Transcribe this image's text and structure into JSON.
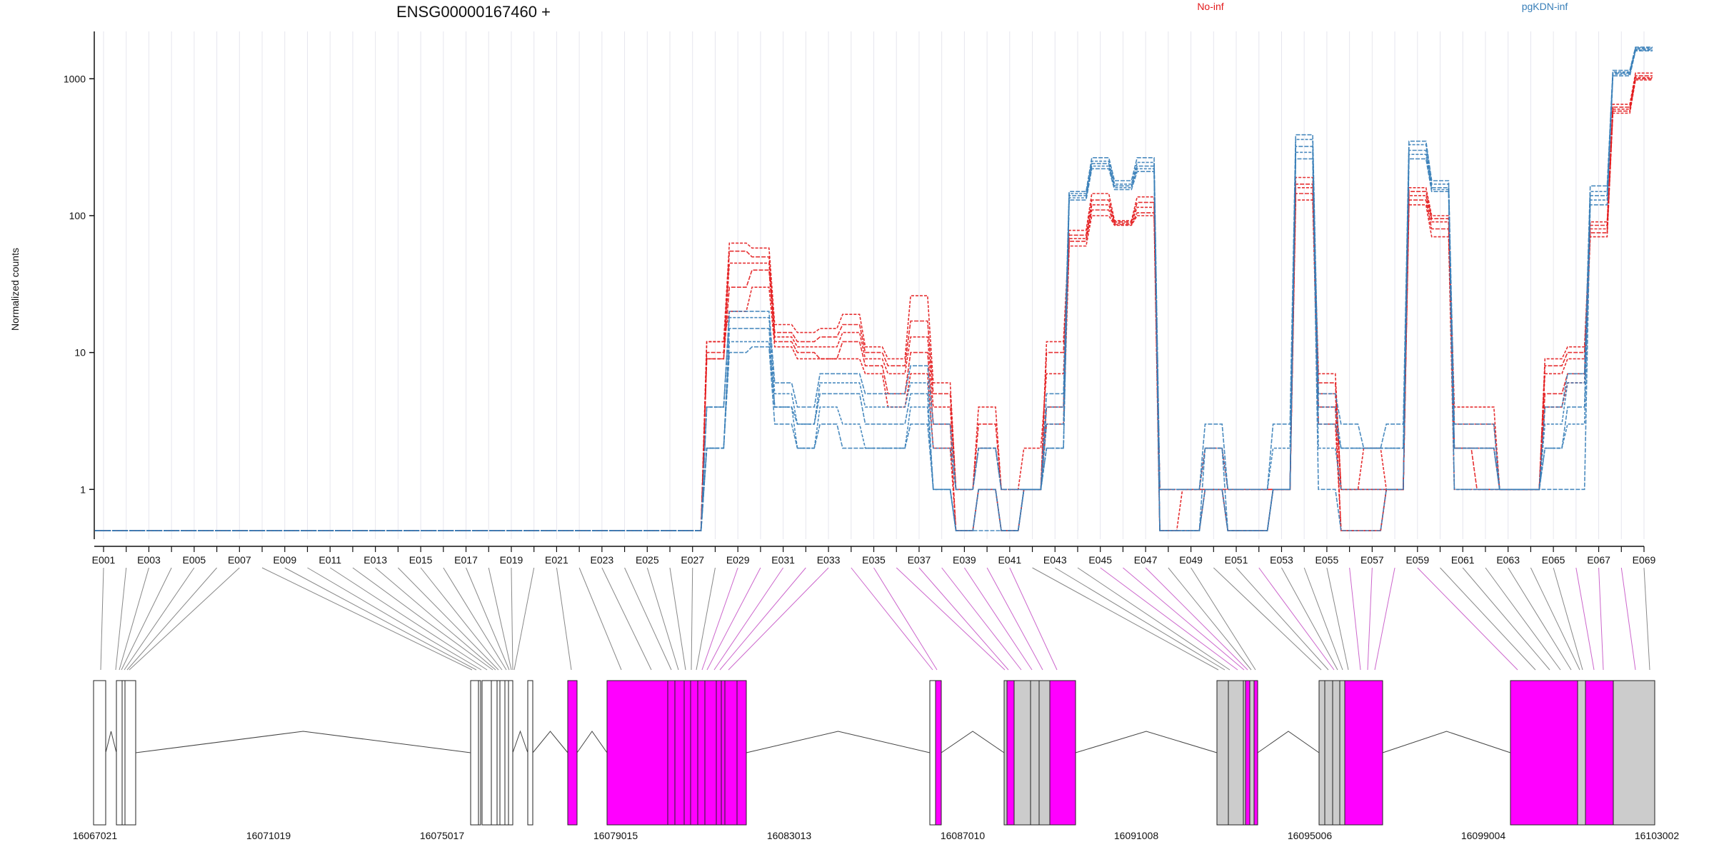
{
  "chart_data": {
    "type": "line",
    "title": "ENSG00000167460 +",
    "ylabel": "Normalized counts",
    "y_scale": "log",
    "ylim": [
      0.5,
      2500
    ],
    "y_ticks": [
      1,
      10,
      100,
      1000
    ],
    "y_tick_labels": [
      "1",
      "10",
      "100",
      "1000"
    ],
    "grid": "vertical",
    "legend_placement": "top",
    "colors": {
      "No-inf": "#e31a1c",
      "pgKDN-inf": "#377eb8",
      "exon_gray": "#cccccc",
      "exon_magenta": "#ff00ff",
      "intron_line": "#555555"
    },
    "x_categories": [
      "E001",
      "E002",
      "E003",
      "E004",
      "E005",
      "E006",
      "E007",
      "E008",
      "E009",
      "E010",
      "E011",
      "E012",
      "E013",
      "E014",
      "E015",
      "E016",
      "E017",
      "E018",
      "E019",
      "E020",
      "E021",
      "E022",
      "E023",
      "E024",
      "E025",
      "E026",
      "E027",
      "E028",
      "E029",
      "E030",
      "E031",
      "E032",
      "E033",
      "E034",
      "E035",
      "E036",
      "E037",
      "E038",
      "E039",
      "E040",
      "E041",
      "E042",
      "E043",
      "E044",
      "E045",
      "E046",
      "E047",
      "E048",
      "E049",
      "E050",
      "E051",
      "E052",
      "E053",
      "E054",
      "E055",
      "E056",
      "E057",
      "E058",
      "E059",
      "E060",
      "E061",
      "E062",
      "E063",
      "E064",
      "E065",
      "E066",
      "E067",
      "E068",
      "E069"
    ],
    "x_tick_labels": [
      "E001",
      "E003",
      "E005",
      "E007",
      "E009",
      "E011",
      "E013",
      "E015",
      "E017",
      "E019",
      "E021",
      "E023",
      "E025",
      "E027",
      "E029",
      "E031",
      "E033",
      "E035",
      "E037",
      "E039",
      "E041",
      "E043",
      "E045",
      "E047",
      "E049",
      "E051",
      "E053",
      "E055",
      "E057",
      "E059",
      "E061",
      "E063",
      "E065",
      "E067",
      "E069"
    ],
    "legend": [
      {
        "name": "No-inf",
        "color": "#e31a1c"
      },
      {
        "name": "pgKDN-inf",
        "color": "#377eb8"
      }
    ],
    "series": [
      {
        "group": "No-inf",
        "values": [
          0.5,
          0.5,
          0.5,
          0.5,
          0.5,
          0.5,
          0.5,
          0.5,
          0.5,
          0.5,
          0.5,
          0.5,
          0.5,
          0.5,
          0.5,
          0.5,
          0.5,
          0.5,
          0.5,
          0.5,
          0.5,
          0.5,
          0.5,
          0.5,
          0.5,
          0.5,
          0.5,
          12,
          63,
          58,
          16,
          14,
          15,
          19,
          11,
          9,
          26,
          6,
          1,
          4,
          1,
          1,
          12,
          78,
          145,
          92,
          137,
          1,
          1,
          1,
          1,
          1,
          1,
          190,
          7,
          1,
          1,
          1,
          160,
          100,
          4,
          4,
          1,
          1,
          9,
          11,
          90,
          650,
          1100
        ]
      },
      {
        "group": "No-inf",
        "values": [
          0.5,
          0.5,
          0.5,
          0.5,
          0.5,
          0.5,
          0.5,
          0.5,
          0.5,
          0.5,
          0.5,
          0.5,
          0.5,
          0.5,
          0.5,
          0.5,
          0.5,
          0.5,
          0.5,
          0.5,
          0.5,
          0.5,
          0.5,
          0.5,
          0.5,
          0.5,
          0.5,
          10,
          55,
          50,
          14,
          12,
          13,
          16,
          10,
          8,
          17,
          5,
          1,
          3,
          1,
          1,
          10,
          72,
          130,
          90,
          125,
          1,
          1,
          1,
          1,
          1,
          1,
          170,
          6,
          1,
          1,
          1,
          150,
          95,
          3,
          3,
          1,
          1,
          8,
          10,
          85,
          620,
          1050
        ]
      },
      {
        "group": "No-inf",
        "values": [
          0.5,
          0.5,
          0.5,
          0.5,
          0.5,
          0.5,
          0.5,
          0.5,
          0.5,
          0.5,
          0.5,
          0.5,
          0.5,
          0.5,
          0.5,
          0.5,
          0.5,
          0.5,
          0.5,
          0.5,
          0.5,
          0.5,
          0.5,
          0.5,
          0.5,
          0.5,
          0.5,
          9,
          45,
          45,
          13,
          11,
          11,
          14,
          9,
          7,
          13,
          4,
          1,
          2,
          1,
          2,
          7,
          68,
          120,
          88,
          115,
          1,
          1,
          2,
          1,
          1,
          1,
          160,
          5,
          1,
          2,
          1,
          140,
          90,
          2,
          2,
          1,
          1,
          7,
          9,
          80,
          600,
          1020
        ]
      },
      {
        "group": "No-inf",
        "values": [
          0.5,
          0.5,
          0.5,
          0.5,
          0.5,
          0.5,
          0.5,
          0.5,
          0.5,
          0.5,
          0.5,
          0.5,
          0.5,
          0.5,
          0.5,
          0.5,
          0.5,
          0.5,
          0.5,
          0.5,
          0.5,
          0.5,
          0.5,
          0.5,
          0.5,
          0.5,
          0.5,
          9,
          30,
          40,
          12,
          10,
          9,
          12,
          8,
          5,
          10,
          3,
          0.5,
          1,
          0.5,
          1,
          4,
          65,
          110,
          86,
          105,
          0.5,
          0.5,
          1,
          0.5,
          0.5,
          1,
          145,
          4,
          0.5,
          0.5,
          1,
          130,
          80,
          2,
          1,
          1,
          1,
          5,
          7,
          75,
          580,
          1000
        ]
      },
      {
        "group": "No-inf",
        "values": [
          0.5,
          0.5,
          0.5,
          0.5,
          0.5,
          0.5,
          0.5,
          0.5,
          0.5,
          0.5,
          0.5,
          0.5,
          0.5,
          0.5,
          0.5,
          0.5,
          0.5,
          0.5,
          0.5,
          0.5,
          0.5,
          0.5,
          0.5,
          0.5,
          0.5,
          0.5,
          0.5,
          12,
          20,
          30,
          11,
          9,
          9,
          9,
          7,
          4,
          7,
          2,
          0.5,
          1,
          0.5,
          1,
          3,
          60,
          100,
          85,
          100,
          0.5,
          1,
          1,
          0.5,
          0.5,
          1,
          130,
          3,
          0.5,
          0.5,
          1,
          120,
          70,
          1,
          1,
          1,
          1,
          4,
          6,
          70,
          560,
          980
        ]
      },
      {
        "group": "pgKDN-inf",
        "values": [
          0.5,
          0.5,
          0.5,
          0.5,
          0.5,
          0.5,
          0.5,
          0.5,
          0.5,
          0.5,
          0.5,
          0.5,
          0.5,
          0.5,
          0.5,
          0.5,
          0.5,
          0.5,
          0.5,
          0.5,
          0.5,
          0.5,
          0.5,
          0.5,
          0.5,
          0.5,
          0.5,
          4,
          20,
          20,
          6,
          4,
          7,
          7,
          5,
          5,
          8,
          3,
          1,
          2,
          1,
          1,
          5,
          150,
          265,
          180,
          265,
          1,
          1,
          3,
          1,
          1,
          3,
          390,
          5,
          3,
          2,
          3,
          350,
          180,
          3,
          3,
          1,
          1,
          4,
          7,
          165,
          1150,
          1700
        ]
      },
      {
        "group": "pgKDN-inf",
        "values": [
          0.5,
          0.5,
          0.5,
          0.5,
          0.5,
          0.5,
          0.5,
          0.5,
          0.5,
          0.5,
          0.5,
          0.5,
          0.5,
          0.5,
          0.5,
          0.5,
          0.5,
          0.5,
          0.5,
          0.5,
          0.5,
          0.5,
          0.5,
          0.5,
          0.5,
          0.5,
          0.5,
          4,
          18,
          18,
          5,
          3,
          6,
          6,
          4,
          4,
          6,
          2,
          1,
          2,
          1,
          1,
          4,
          145,
          250,
          170,
          245,
          1,
          1,
          2,
          1,
          1,
          2,
          360,
          4,
          2,
          2,
          2,
          330,
          170,
          2,
          2,
          1,
          1,
          3,
          6,
          150,
          1120,
          1680
        ]
      },
      {
        "group": "pgKDN-inf",
        "values": [
          0.5,
          0.5,
          0.5,
          0.5,
          0.5,
          0.5,
          0.5,
          0.5,
          0.5,
          0.5,
          0.5,
          0.5,
          0.5,
          0.5,
          0.5,
          0.5,
          0.5,
          0.5,
          0.5,
          0.5,
          0.5,
          0.5,
          0.5,
          0.5,
          0.5,
          0.5,
          0.5,
          2,
          15,
          15,
          4,
          3,
          5,
          5,
          3,
          3,
          5,
          1,
          0.5,
          1,
          0.5,
          1,
          3,
          140,
          240,
          165,
          230,
          0.5,
          0.5,
          2,
          0.5,
          0.5,
          1,
          320,
          3,
          2,
          2,
          2,
          300,
          160,
          2,
          2,
          1,
          1,
          2,
          4,
          140,
          1100,
          1650
        ]
      },
      {
        "group": "pgKDN-inf",
        "values": [
          0.5,
          0.5,
          0.5,
          0.5,
          0.5,
          0.5,
          0.5,
          0.5,
          0.5,
          0.5,
          0.5,
          0.5,
          0.5,
          0.5,
          0.5,
          0.5,
          0.5,
          0.5,
          0.5,
          0.5,
          0.5,
          0.5,
          0.5,
          0.5,
          0.5,
          0.5,
          0.5,
          2,
          12,
          12,
          4,
          2,
          4,
          3,
          2,
          2,
          4,
          1,
          0.5,
          1,
          0.5,
          1,
          2,
          135,
          230,
          160,
          220,
          0.5,
          0.5,
          1,
          0.5,
          0.5,
          1,
          290,
          2,
          1,
          1,
          1,
          280,
          155,
          1,
          1,
          1,
          1,
          2,
          3,
          130,
          1080,
          1620
        ]
      },
      {
        "group": "pgKDN-inf",
        "values": [
          0.5,
          0.5,
          0.5,
          0.5,
          0.5,
          0.5,
          0.5,
          0.5,
          0.5,
          0.5,
          0.5,
          0.5,
          0.5,
          0.5,
          0.5,
          0.5,
          0.5,
          0.5,
          0.5,
          0.5,
          0.5,
          0.5,
          0.5,
          0.5,
          0.5,
          0.5,
          0.5,
          2,
          10,
          11,
          3,
          2,
          3,
          2,
          2,
          2,
          3,
          1,
          0.5,
          0.5,
          0.5,
          1,
          2,
          130,
          220,
          155,
          210,
          0.5,
          0.5,
          1,
          0.5,
          0.5,
          1,
          260,
          1,
          0.5,
          0.5,
          1,
          260,
          150,
          1,
          1,
          1,
          1,
          1,
          1,
          120,
          1050,
          1600
        ]
      }
    ],
    "gene_model": {
      "genomic_ticks": [
        "16067021",
        "16071019",
        "16075017",
        "16079015",
        "16083013",
        "16087010",
        "16091008",
        "16095006",
        "16099004",
        "16103002"
      ]
    }
  }
}
